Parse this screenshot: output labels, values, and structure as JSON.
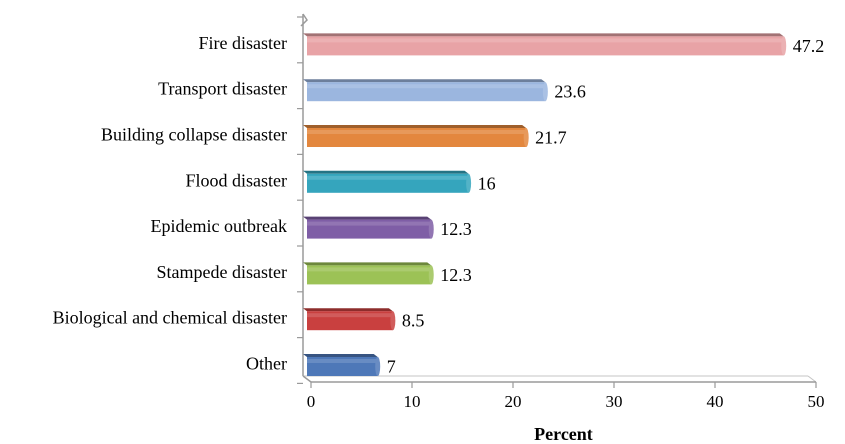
{
  "chart_data": {
    "type": "bar",
    "orientation": "horizontal",
    "categories": [
      "Fire disaster",
      "Transport disaster",
      "Building collapse disaster",
      "Flood disaster",
      "Epidemic outbreak",
      "Stampede disaster",
      "Biological and chemical disaster",
      "Other"
    ],
    "values": [
      47.2,
      23.6,
      21.7,
      16,
      12.3,
      12.3,
      8.5,
      7
    ],
    "value_labels": [
      "47.2",
      "23.6",
      "21.7",
      "16",
      "12.3",
      "12.3",
      "8.5",
      "7"
    ],
    "colors": [
      "#e8a3a6",
      "#9bb6df",
      "#e3873e",
      "#35a5bd",
      "#7f5ea6",
      "#9cc256",
      "#c9403f",
      "#4e78b8"
    ],
    "title": "",
    "xlabel": "Percent",
    "ylabel": "",
    "xlim": [
      0,
      50
    ],
    "xticks": [
      0,
      10,
      20,
      30,
      40,
      50
    ],
    "xtick_labels": [
      "0",
      "10",
      "20",
      "30",
      "40",
      "50"
    ],
    "grid": false,
    "legend": "none"
  }
}
